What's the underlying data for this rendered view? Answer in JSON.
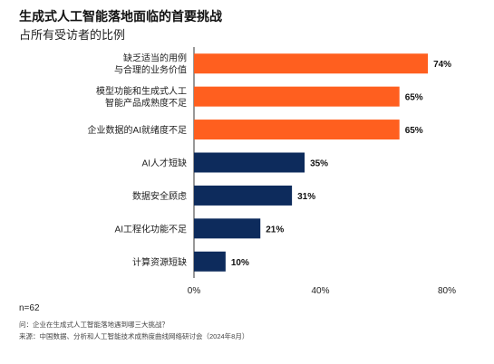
{
  "header": {
    "title": "生成式人工智能落地面临的首要挑战",
    "subtitle": "占所有受访者的比例"
  },
  "footer": {
    "sample": "n=62",
    "question": "问：企业在生成式人工智能落地遇到哪三大挑战？",
    "source": "来源：中国数据、分析和人工智能技术成熟度曲线网络研讨会（2024年8月）"
  },
  "chart_data": {
    "type": "bar",
    "orientation": "horizontal",
    "categories": [
      [
        "缺乏适当的用例",
        "与合理的业务价值"
      ],
      [
        "模型功能和生成式人工",
        "智能产品成熟度不足"
      ],
      [
        "企业数据的AI就绪度不足"
      ],
      [
        "AI人才短缺"
      ],
      [
        "数据安全顾虑"
      ],
      [
        "AI工程化功能不足"
      ],
      [
        "计算资源短缺"
      ]
    ],
    "values": [
      74,
      65,
      65,
      35,
      31,
      21,
      10
    ],
    "value_labels": [
      "74%",
      "65%",
      "65%",
      "35%",
      "31%",
      "21%",
      "10%"
    ],
    "bar_colors": [
      "#ff5f1f",
      "#ff5f1f",
      "#ff5f1f",
      "#0d2b5c",
      "#0d2b5c",
      "#0d2b5c",
      "#0d2b5c"
    ],
    "xlim": [
      0,
      80
    ],
    "x_ticks": [
      0,
      40,
      80
    ],
    "x_tick_labels": [
      "0%",
      "40%",
      "80%"
    ],
    "grid": false
  }
}
